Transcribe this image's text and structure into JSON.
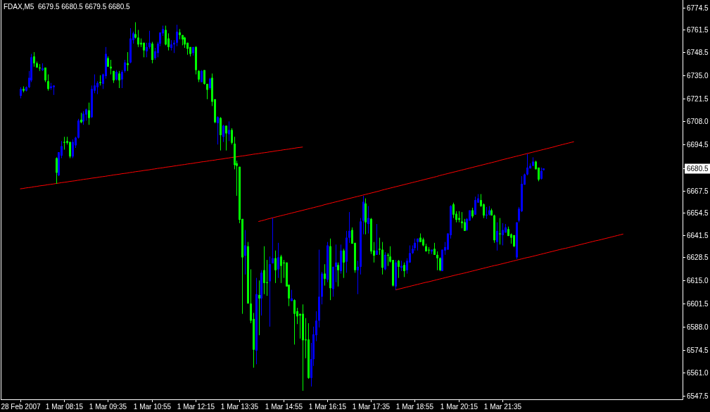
{
  "chart_data": {
    "type": "candlestick",
    "title": "FDAX,M5  6679.5 6680.5 6679.5 6680.5",
    "categories": [
      "28 Feb 2007",
      null,
      null,
      null,
      null,
      null,
      null,
      null,
      null,
      null,
      null,
      null,
      null,
      null,
      null,
      null,
      "1 Mar 08:15",
      null,
      null,
      null,
      null,
      null,
      null,
      null,
      null,
      null,
      null,
      null,
      null,
      null,
      null,
      null,
      "1 Mar 09:35",
      null,
      null,
      null,
      null,
      null,
      null,
      null,
      null,
      null,
      null,
      null,
      null,
      null,
      null,
      null,
      "1 Mar 10:55",
      null,
      null,
      null,
      null,
      null,
      null,
      null,
      null,
      null,
      null,
      null,
      null,
      null,
      null,
      null,
      "1 Mar 12:15",
      null,
      null,
      null,
      null,
      null,
      null,
      null,
      null,
      null,
      null,
      null,
      null,
      null,
      null,
      null,
      "1 Mar 13:35",
      null,
      null,
      null,
      null,
      null,
      null,
      null,
      null,
      null,
      null,
      null,
      null,
      null,
      null,
      null,
      "1 Mar 14:55",
      null,
      null,
      null,
      null,
      null,
      null,
      null,
      null,
      null,
      null,
      null,
      null,
      null,
      null,
      null,
      "1 Mar 16:15",
      null,
      null,
      null,
      null,
      null,
      null,
      null,
      null,
      null,
      null,
      null,
      null,
      null,
      null,
      null,
      "1 Mar 17:35",
      null,
      null,
      null,
      null,
      null,
      null,
      null,
      null,
      null,
      null,
      null,
      null,
      null,
      null,
      null,
      "1 Mar 18:55",
      null,
      null,
      null,
      null,
      null,
      null,
      null,
      null,
      null,
      null,
      null,
      null,
      null,
      null,
      null,
      "1 Mar 20:15",
      null,
      null,
      null,
      null,
      null,
      null,
      null,
      null,
      null,
      null,
      null,
      null,
      null,
      null,
      null,
      "1 Mar 21:35",
      null,
      null,
      null,
      null,
      null,
      null,
      null,
      null,
      null,
      null,
      null,
      null,
      null,
      null,
      null,
      null,
      null,
      null,
      null,
      null,
      null,
      null,
      null,
      null,
      null,
      null,
      null,
      null,
      null,
      null,
      null,
      null,
      null,
      null,
      null,
      null,
      null,
      null,
      null,
      null,
      null,
      null,
      null,
      null,
      null,
      null,
      null,
      null,
      null,
      null,
      null,
      null,
      null,
      null,
      null,
      null,
      null,
      null,
      null,
      null,
      null,
      null,
      null,
      null,
      null
    ],
    "ohlc": [
      [
        6723,
        6728,
        6721.5,
        6727
      ],
      [
        6727,
        6728.5,
        6725,
        6726
      ],
      [
        6726,
        6728.5,
        6725.5,
        6728
      ],
      [
        6728,
        6737.5,
        6727.5,
        6733.5
      ],
      [
        6732,
        6747.5,
        6731,
        6745.5
      ],
      [
        6746,
        6748.5,
        6740,
        6742
      ],
      [
        6742,
        6743,
        6739.5,
        6739.5
      ],
      [
        6739.5,
        6741.5,
        6737.5,
        6739
      ],
      [
        6738,
        6742,
        6737.5,
        6739
      ],
      [
        6739.5,
        6739.5,
        6731,
        6732
      ],
      [
        6731.5,
        6735.5,
        6726,
        6727
      ],
      [
        6727.5,
        6730.5,
        6726.5,
        6728.5
      ],
      [
        6728,
        6729,
        6723.5,
        6729
      ],
      [
        6686.5,
        6687,
        6671.5,
        6678
      ],
      [
        6676.5,
        6690,
        6676,
        6690
      ],
      [
        6688,
        6696.5,
        6686.5,
        6693.5
      ],
      [
        6696,
        6699,
        6691.5,
        6695.5
      ],
      [
        6696.5,
        6699,
        6694.5,
        6695.5
      ],
      [
        6696,
        6696,
        6686.5,
        6687.5
      ],
      [
        6687.5,
        6697.5,
        6686.5,
        6696
      ],
      [
        6694,
        6699,
        6692.5,
        6698.5
      ],
      [
        6698.5,
        6709.5,
        6698,
        6708.5
      ],
      [
        6709,
        6713,
        6707,
        6707.5
      ],
      [
        6708,
        6714,
        6706,
        6712.5
      ],
      [
        6712,
        6715.5,
        6708.5,
        6715
      ],
      [
        6714.5,
        6719,
        6706,
        6710
      ],
      [
        6710.5,
        6729,
        6710,
        6727
      ],
      [
        6726,
        6735.5,
        6724.5,
        6729
      ],
      [
        6728,
        6731.5,
        6724,
        6730.5
      ],
      [
        6731,
        6735,
        6729,
        6730.5
      ],
      [
        6730,
        6736,
        6727,
        6735.5
      ],
      [
        6734.5,
        6751.5,
        6733,
        6747.5
      ],
      [
        6745,
        6746,
        6740,
        6740
      ],
      [
        6740,
        6744,
        6735.5,
        6739
      ],
      [
        6737.5,
        6737.5,
        6730.5,
        6732
      ],
      [
        6732.5,
        6738,
        6732,
        6737
      ],
      [
        6736,
        6737.5,
        6727.5,
        6732
      ],
      [
        6732.5,
        6738,
        6727.5,
        6737
      ],
      [
        6737.5,
        6744,
        6736.5,
        6742.5
      ],
      [
        6742,
        6748.5,
        6737.5,
        6741
      ],
      [
        6742.5,
        6762.5,
        6742,
        6756.5
      ],
      [
        6755.5,
        6760.5,
        6753.5,
        6759.5
      ],
      [
        6759,
        6766,
        6756.5,
        6757
      ],
      [
        6757,
        6761.5,
        6751.5,
        6753
      ],
      [
        6754,
        6756.5,
        6751.5,
        6753
      ],
      [
        6754,
        6754,
        6745.5,
        6749.5
      ],
      [
        6749,
        6754,
        6745.5,
        6751.5
      ],
      [
        6751.5,
        6761,
        6750.5,
        6754
      ],
      [
        6753.5,
        6754.5,
        6742,
        6744
      ],
      [
        6745,
        6751,
        6744,
        6749
      ],
      [
        6748,
        6754.5,
        6745.5,
        6753.5
      ],
      [
        6753.5,
        6760,
        6752,
        6760
      ],
      [
        6759.5,
        6764,
        6758,
        6762
      ],
      [
        6761.5,
        6764,
        6752.5,
        6753
      ],
      [
        6756.5,
        6759.5,
        6749.5,
        6751.5
      ],
      [
        6751,
        6755.5,
        6749.5,
        6753
      ],
      [
        6753,
        6755.5,
        6748,
        6754
      ],
      [
        6754,
        6764.5,
        6752,
        6760.5
      ],
      [
        6760,
        6762,
        6756,
        6758.5
      ],
      [
        6758.5,
        6758.5,
        6752.5,
        6756
      ],
      [
        6757,
        6757.5,
        6751,
        6753
      ],
      [
        6754,
        6754,
        6747,
        6750.5
      ],
      [
        6751.5,
        6751.5,
        6746,
        6747.5
      ],
      [
        6748,
        6751.5,
        6746.5,
        6751.5
      ],
      [
        6751.5,
        6752,
        6735.5,
        6738
      ],
      [
        6737.5,
        6738,
        6731,
        6732.5
      ],
      [
        6731,
        6738,
        6731,
        6737.5
      ],
      [
        6738,
        6738,
        6729.5,
        6730
      ],
      [
        6730,
        6730,
        6721,
        6726.5
      ],
      [
        6727.5,
        6733.5,
        6726.5,
        6733
      ],
      [
        6733.5,
        6736,
        6717,
        6719.5
      ],
      [
        6721,
        6721,
        6707,
        6707.5
      ],
      [
        6707,
        6711,
        6694.5,
        6710.5
      ],
      [
        6710,
        6710.5,
        6691,
        6700
      ],
      [
        6699,
        6706,
        6696,
        6705.5
      ],
      [
        6705.5,
        6705.5,
        6691,
        6701
      ],
      [
        6700.5,
        6708,
        6696.5,
        6703
      ],
      [
        6703,
        6704,
        6694.5,
        6695.5
      ],
      [
        6695,
        6699,
        6680,
        6682.5
      ],
      [
        6683.5,
        6685,
        6664.5,
        6682
      ],
      [
        6681.5,
        6681.5,
        6648.5,
        6650.5
      ],
      [
        6651,
        6651,
        6595.5,
        6628.5
      ],
      [
        6629.5,
        6644.5,
        6618.5,
        6635.5
      ],
      [
        6635,
        6637.5,
        6601.5,
        6601.5
      ],
      [
        6601.5,
        6621.5,
        6590,
        6591.5
      ],
      [
        6592.5,
        6596,
        6564,
        6574.5
      ],
      [
        6574,
        6616.5,
        6566,
        6607
      ],
      [
        6606.5,
        6615,
        6583,
        6604.5
      ],
      [
        6604.5,
        6621,
        6594.5,
        6619.5
      ],
      [
        6621,
        6635,
        6607,
        6613.5
      ],
      [
        6614,
        6627,
        6606,
        6613.5
      ],
      [
        6614.5,
        6629,
        6588,
        6624.5
      ],
      [
        6625,
        6651.5,
        6625,
        6628
      ],
      [
        6628,
        6632.5,
        6613.5,
        6621
      ],
      [
        6621.5,
        6637,
        6616.5,
        6628.5
      ],
      [
        6629,
        6630,
        6613.5,
        6623.5
      ],
      [
        6625.5,
        6627,
        6616.5,
        6625
      ],
      [
        6625.5,
        6625.5,
        6611.5,
        6611.5
      ],
      [
        6612.5,
        6612.5,
        6600,
        6604.5
      ],
      [
        6603,
        6609.5,
        6603,
        6604.5
      ],
      [
        6603.5,
        6604,
        6577.5,
        6595.5
      ],
      [
        6597,
        6599,
        6589.5,
        6594
      ],
      [
        6595.5,
        6595.5,
        6581,
        6594.5
      ],
      [
        6595.5,
        6601,
        6550.5,
        6580
      ],
      [
        6580.5,
        6593,
        6569.5,
        6580
      ],
      [
        6580.5,
        6590,
        6557.5,
        6558
      ],
      [
        6558,
        6578.5,
        6553,
        6569
      ],
      [
        6569,
        6588,
        6565,
        6583.5
      ],
      [
        6583,
        6597,
        6579.5,
        6591.5
      ],
      [
        6591.5,
        6633,
        6587.5,
        6605.5
      ],
      [
        6605.5,
        6620,
        6601,
        6619
      ],
      [
        6619,
        6624.5,
        6612,
        6616
      ],
      [
        6615.5,
        6637.5,
        6614,
        6635.5
      ],
      [
        6635,
        6639.5,
        6603.5,
        6610.5
      ],
      [
        6610,
        6623,
        6605.5,
        6623
      ],
      [
        6623,
        6636,
        6614,
        6625.5
      ],
      [
        6624,
        6625.5,
        6611.5,
        6621
      ],
      [
        6620.5,
        6636,
        6619,
        6632.5
      ],
      [
        6632.5,
        6633.5,
        6616.5,
        6625.5
      ],
      [
        6626,
        6644,
        6619.5,
        6640
      ],
      [
        6640,
        6655,
        6637,
        6644
      ],
      [
        6644.5,
        6646,
        6636.5,
        6636.5
      ],
      [
        6637,
        6637,
        6619.5,
        6621
      ],
      [
        6621,
        6626.5,
        6607,
        6623
      ],
      [
        6623,
        6651.5,
        6618.5,
        6649.5
      ],
      [
        6650,
        6664.5,
        6642,
        6661
      ],
      [
        6660,
        6663,
        6642,
        6649
      ],
      [
        6648,
        6658.5,
        6642.5,
        6651.5
      ],
      [
        6651,
        6651.5,
        6630.5,
        6632
      ],
      [
        6632.5,
        6637.5,
        6625.5,
        6629.5
      ],
      [
        6630,
        6648,
        6630,
        6632.5
      ],
      [
        6633.5,
        6640,
        6630,
        6633
      ],
      [
        6633,
        6637.5,
        6618.5,
        6622.5
      ],
      [
        6621.5,
        6631.5,
        6621,
        6630
      ],
      [
        6630,
        6631,
        6623.5,
        6629.5
      ],
      [
        6629,
        6635,
        6625.5,
        6626
      ],
      [
        6627,
        6627,
        6611.5,
        6612
      ],
      [
        6611.5,
        6627,
        6609.5,
        6625.5
      ],
      [
        6626.5,
        6627,
        6616.5,
        6623
      ],
      [
        6622.5,
        6626.5,
        6620.5,
        6623.5
      ],
      [
        6624,
        6625.5,
        6617,
        6620.5
      ],
      [
        6621,
        6628,
        6619,
        6626.5
      ],
      [
        6625.5,
        6635.5,
        6625.5,
        6631
      ],
      [
        6631,
        6635.5,
        6630.5,
        6633.5
      ],
      [
        6634,
        6639.5,
        6632.5,
        6637
      ],
      [
        6637.5,
        6639.5,
        6632.5,
        6639.5
      ],
      [
        6640,
        6642.5,
        6637.5,
        6637.5
      ],
      [
        6639,
        6640,
        6635,
        6635.5
      ],
      [
        6635,
        6636.5,
        6632,
        6632
      ],
      [
        6633,
        6634.5,
        6630.5,
        6632.5
      ],
      [
        6632,
        6633,
        6630.5,
        6633
      ],
      [
        6633.5,
        6637,
        6630,
        6630
      ],
      [
        6630,
        6632,
        6621,
        6628
      ],
      [
        6628,
        6628.5,
        6620.5,
        6621
      ],
      [
        6620.5,
        6633,
        6620.5,
        6633
      ],
      [
        6632.5,
        6637.5,
        6630,
        6634.5
      ],
      [
        6633,
        6642.5,
        6633,
        6642.5
      ],
      [
        6641.5,
        6659,
        6639.5,
        6658.5
      ],
      [
        6659.5,
        6660.5,
        6651.5,
        6653.5
      ],
      [
        6654,
        6655.5,
        6649,
        6650.5
      ],
      [
        6651.5,
        6655.5,
        6649,
        6650.5
      ],
      [
        6649.5,
        6655,
        6645.5,
        6648.5
      ],
      [
        6649,
        6651,
        6644,
        6644
      ],
      [
        6644.5,
        6651.5,
        6644,
        6651
      ],
      [
        6650,
        6656,
        6650,
        6656
      ],
      [
        6656,
        6657.5,
        6651.5,
        6652.5
      ],
      [
        6653.5,
        6664,
        6653.5,
        6662
      ],
      [
        6660.5,
        6665.5,
        6660.5,
        6663
      ],
      [
        6662,
        6665.5,
        6658,
        6658.5
      ],
      [
        6659.5,
        6660,
        6651.5,
        6653
      ],
      [
        6653,
        6658,
        6651,
        6653.5
      ],
      [
        6653.5,
        6658.5,
        6653,
        6656
      ],
      [
        6656,
        6657,
        6653,
        6653
      ],
      [
        6653,
        6653.5,
        6637,
        6638.5
      ],
      [
        6637.5,
        6649,
        6632.5,
        6644
      ],
      [
        6642.5,
        6651.5,
        6636,
        6642
      ],
      [
        6641.5,
        6648.5,
        6635.5,
        6644.5
      ],
      [
        6643,
        6648,
        6643,
        6646
      ],
      [
        6645,
        6646.5,
        6641,
        6641
      ],
      [
        6642,
        6642.5,
        6636.5,
        6640
      ],
      [
        6641.5,
        6641.5,
        6634.5,
        6635
      ],
      [
        6628.5,
        6649,
        6627.5,
        6649
      ],
      [
        6650,
        6658,
        6649,
        6657
      ],
      [
        6655.5,
        6676,
        6655,
        6671.5
      ],
      [
        6671,
        6677.5,
        6671,
        6677
      ],
      [
        6677,
        6689,
        6676.5,
        6681
      ],
      [
        6680.5,
        6683.5,
        6680.5,
        6682
      ],
      [
        6682,
        6687,
        6682,
        6684.5
      ],
      [
        6684.5,
        6685,
        6680,
        6680
      ],
      [
        6681,
        6681,
        6673,
        6674
      ],
      [
        6674.5,
        6681,
        6674,
        6679
      ],
      [
        6679.5,
        6680.5,
        6679.5,
        6680.5
      ],
      null,
      null,
      null,
      null,
      null,
      null,
      null,
      null,
      null,
      null,
      null,
      null,
      null,
      null,
      null,
      null,
      null,
      null,
      null,
      null,
      null,
      null,
      null,
      null,
      null,
      null,
      null,
      null,
      null,
      null,
      null,
      null,
      null,
      null,
      null,
      null,
      null,
      null,
      null,
      null,
      null,
      null,
      null,
      null,
      null,
      null,
      null,
      null,
      null,
      null
    ],
    "colors": [
      "#0000ff",
      "#00ff00",
      "#0000ff",
      "#0000ff",
      "#0000ff",
      "#00ff00",
      "#00ff00",
      "#00ff00",
      "#0000ff",
      "#00ff00",
      "#00ff00",
      "#0000ff",
      "#0000ff",
      "#00ff00",
      "#0000ff",
      "#0000ff",
      "#00ff00",
      "#00ff00",
      "#00ff00",
      "#0000ff",
      "#0000ff",
      "#0000ff",
      "#00ff00",
      "#0000ff",
      "#0000ff",
      "#00ff00",
      "#0000ff",
      "#0000ff",
      "#0000ff",
      "#00ff00",
      "#0000ff",
      "#0000ff",
      "#00ff00",
      "#00ff00",
      "#00ff00",
      "#0000ff",
      "#00ff00",
      "#0000ff",
      "#0000ff",
      "#00ff00",
      "#0000ff",
      "#0000ff",
      "#00ff00",
      "#00ff00",
      "#00ff00",
      "#00ff00",
      "#0000ff",
      "#0000ff",
      "#00ff00",
      "#0000ff",
      "#0000ff",
      "#0000ff",
      "#0000ff",
      "#00ff00",
      "#00ff00",
      "#0000ff",
      "#0000ff",
      "#0000ff",
      "#00ff00",
      "#00ff00",
      "#00ff00",
      "#00ff00",
      "#00ff00",
      "#0000ff",
      "#00ff00",
      "#00ff00",
      "#0000ff",
      "#00ff00",
      "#00ff00",
      "#0000ff",
      "#00ff00",
      "#00ff00",
      "#0000ff",
      "#00ff00",
      "#0000ff",
      "#00ff00",
      "#0000ff",
      "#00ff00",
      "#00ff00",
      "#00ff00",
      "#00ff00",
      "#00ff00",
      "#0000ff",
      "#00ff00",
      "#00ff00",
      "#00ff00",
      "#0000ff",
      "#00ff00",
      "#0000ff",
      "#00ff00",
      "#00ff00",
      "#0000ff",
      "#0000ff",
      "#00ff00",
      "#0000ff",
      "#00ff00",
      "#00ff00",
      "#00ff00",
      "#00ff00",
      "#0000ff",
      "#00ff00",
      "#00ff00",
      "#00ff00",
      "#00ff00",
      "#00ff00",
      "#00ff00",
      "#0000ff",
      "#0000ff",
      "#0000ff",
      "#0000ff",
      "#0000ff",
      "#00ff00",
      "#0000ff",
      "#00ff00",
      "#0000ff",
      "#0000ff",
      "#00ff00",
      "#0000ff",
      "#00ff00",
      "#0000ff",
      "#0000ff",
      "#00ff00",
      "#00ff00",
      "#0000ff",
      "#0000ff",
      "#0000ff",
      "#00ff00",
      "#0000ff",
      "#00ff00",
      "#00ff00",
      "#0000ff",
      "#00ff00",
      "#00ff00",
      "#0000ff",
      "#00ff00",
      "#00ff00",
      "#00ff00",
      "#0000ff",
      "#00ff00",
      "#0000ff",
      "#00ff00",
      "#0000ff",
      "#0000ff",
      "#0000ff",
      "#0000ff",
      "#0000ff",
      "#00ff00",
      "#00ff00",
      "#00ff00",
      "#00ff00",
      "#0000ff",
      "#00ff00",
      "#00ff00",
      "#00ff00",
      "#0000ff",
      "#0000ff",
      "#0000ff",
      "#0000ff",
      "#00ff00",
      "#00ff00",
      "#00ff00",
      "#00ff00",
      "#00ff00",
      "#0000ff",
      "#0000ff",
      "#00ff00",
      "#0000ff",
      "#0000ff",
      "#00ff00",
      "#00ff00",
      "#0000ff",
      "#0000ff",
      "#00ff00",
      "#00ff00",
      "#0000ff",
      "#00ff00",
      "#0000ff",
      "#0000ff",
      "#00ff00",
      "#00ff00",
      "#00ff00",
      "#0000ff",
      "#0000ff",
      "#0000ff",
      "#0000ff",
      "#0000ff",
      "#0000ff",
      "#0000ff",
      "#00ff00",
      "#00ff00",
      "#0000ff",
      "#0000ff",
      null,
      null,
      null,
      null,
      null,
      null,
      null,
      null,
      null,
      null,
      null,
      null,
      null,
      null,
      null,
      null,
      null,
      null,
      null,
      null,
      null,
      null,
      null,
      null,
      null,
      null,
      null,
      null,
      null,
      null,
      null,
      null,
      null,
      null,
      null,
      null,
      null,
      null,
      null,
      null,
      null,
      null,
      null,
      null,
      null,
      null,
      null,
      null,
      null,
      null
    ],
    "series": [
      {
        "type": "line",
        "color": "#ff0000",
        "values": [
          6668.6,
          6668.8,
          6669.1,
          6669.3,
          6669.5,
          6669.8,
          6670.0,
          6670.3,
          6670.5,
          6670.7,
          6671.0,
          6671.2,
          6671.4,
          6671.7,
          6671.9,
          6672.2,
          6672.4,
          6672.6,
          6672.9,
          6673.1,
          6673.3,
          6673.6,
          6673.8,
          6674.1,
          6674.3,
          6674.5,
          6674.8,
          6675.0,
          6675.2,
          6675.5,
          6675.7,
          6675.9,
          6676.2,
          6676.4,
          6676.7,
          6676.9,
          6677.1,
          6677.4,
          6677.6,
          6677.8,
          6678.1,
          6678.3,
          6678.6,
          6678.8,
          6679.0,
          6679.3,
          6679.5,
          6679.7,
          6680.0,
          6680.2,
          6680.5,
          6680.7,
          6680.9,
          6681.2,
          6681.4,
          6681.6,
          6681.9,
          6682.1,
          6682.4,
          6682.6,
          6682.8,
          6683.1,
          6683.3,
          6683.5,
          6683.8,
          6684.0,
          6684.3,
          6684.5,
          6684.7,
          6685.0,
          6685.2,
          6685.4,
          6685.7,
          6685.9,
          6686.1,
          6686.4,
          6686.6,
          6686.9,
          6687.1,
          6687.3,
          6687.6,
          6687.8,
          6688.0,
          6688.3,
          6688.5,
          6688.8,
          6689.0,
          6689.2,
          6689.5,
          6689.7,
          6689.9,
          6690.2,
          6690.4,
          6690.7,
          6690.9,
          6691.1,
          6691.4,
          6691.6,
          6691.8,
          6692.1,
          6692.3,
          6692.6,
          6692.8,
          6693.0,
          null,
          null,
          null,
          null,
          null,
          null,
          null,
          null,
          null,
          null,
          null,
          null,
          null,
          null,
          null,
          null,
          null,
          null,
          null,
          null,
          null,
          null,
          null,
          null,
          null,
          null,
          null,
          null,
          null,
          null,
          null,
          null,
          null,
          null,
          null,
          null,
          null,
          null,
          null,
          null,
          null,
          null,
          null,
          null,
          null,
          null,
          null,
          null,
          null,
          null,
          null,
          null,
          null,
          null,
          null,
          null,
          null,
          null,
          null,
          null,
          null,
          null,
          null,
          null,
          null,
          null,
          null,
          null,
          null,
          null,
          null,
          null,
          null,
          null,
          null,
          null,
          null,
          null,
          null,
          null,
          null,
          null,
          null,
          null,
          null,
          null,
          null,
          null,
          null,
          null,
          null,
          null,
          null,
          null,
          null,
          null,
          null,
          null,
          null,
          null,
          null,
          null,
          null,
          null,
          null,
          null,
          null,
          null,
          null,
          null,
          null,
          null,
          null,
          null,
          null,
          null,
          null,
          null,
          null,
          null,
          null,
          null,
          null,
          null,
          null,
          null,
          null,
          null,
          null,
          null,
          null,
          null,
          null,
          null,
          null,
          null,
          null,
          null
        ]
      },
      {
        "type": "line",
        "color": "#ff0000",
        "values": [
          null,
          null,
          null,
          null,
          null,
          null,
          null,
          null,
          null,
          null,
          null,
          null,
          null,
          null,
          null,
          null,
          null,
          null,
          null,
          null,
          null,
          null,
          null,
          null,
          null,
          null,
          null,
          null,
          null,
          null,
          null,
          null,
          null,
          null,
          null,
          null,
          null,
          null,
          null,
          null,
          null,
          null,
          null,
          null,
          null,
          null,
          null,
          null,
          null,
          null,
          null,
          null,
          null,
          null,
          null,
          null,
          null,
          null,
          null,
          null,
          null,
          null,
          null,
          null,
          null,
          null,
          null,
          null,
          null,
          null,
          null,
          null,
          null,
          null,
          null,
          null,
          null,
          null,
          null,
          null,
          null,
          null,
          null,
          null,
          null,
          null,
          null,
          6649.5,
          6649.9,
          6650.3,
          6650.8,
          6651.2,
          6651.6,
          6652.0,
          6652.4,
          6652.8,
          6653.2,
          6653.6,
          6654.0,
          6654.4,
          6654.8,
          6655.2,
          6655.6,
          6656.0,
          6656.4,
          6656.8,
          6657.2,
          6657.6,
          6658.0,
          6658.4,
          6658.8,
          6659.3,
          6659.7,
          6660.1,
          6660.5,
          6660.9,
          6661.3,
          6661.7,
          6662.1,
          6662.5,
          6662.9,
          6663.3,
          6663.7,
          6664.1,
          6664.5,
          6664.9,
          6665.3,
          6665.7,
          6666.1,
          6666.5,
          6666.9,
          6667.3,
          6667.8,
          6668.2,
          6668.6,
          6669.0,
          6669.4,
          6669.8,
          6670.2,
          6670.6,
          6671.0,
          6671.4,
          6671.8,
          6672.2,
          6672.6,
          6673.0,
          6673.4,
          6673.8,
          6674.2,
          6674.6,
          6675.0,
          6675.4,
          6675.8,
          6676.3,
          6676.7,
          6677.1,
          6677.5,
          6677.9,
          6678.3,
          6678.7,
          6679.1,
          6679.5,
          6679.9,
          6680.3,
          6680.7,
          6681.1,
          6681.5,
          6681.9,
          6682.3,
          6682.7,
          6683.1,
          6683.5,
          6683.9,
          6684.3,
          6684.7,
          6685.2,
          6685.6,
          6686.0,
          6686.4,
          6686.8,
          6687.2,
          6687.6,
          6688.0,
          6688.4,
          6688.8,
          6689.2,
          6689.6,
          6690.0,
          6690.4,
          6690.8,
          6691.2,
          6691.6,
          6692.0,
          6692.4,
          6692.8,
          6693.2,
          6693.7,
          6694.1,
          6694.5,
          6694.9,
          6695.3,
          6695.7,
          6696.1,
          null,
          null,
          null,
          null,
          null,
          null,
          null,
          null,
          null,
          null,
          null,
          null,
          null,
          null,
          null,
          null,
          null,
          null,
          null,
          null,
          null,
          null,
          null,
          null,
          null,
          null,
          null,
          null,
          null,
          null,
          null,
          null,
          null,
          null,
          null,
          null,
          null,
          null,
          null
        ]
      },
      {
        "type": "line",
        "color": "#ff0000",
        "values": [
          null,
          null,
          null,
          null,
          null,
          null,
          null,
          null,
          null,
          null,
          null,
          null,
          null,
          null,
          null,
          null,
          null,
          null,
          null,
          null,
          null,
          null,
          null,
          null,
          null,
          null,
          null,
          null,
          null,
          null,
          null,
          null,
          null,
          null,
          null,
          null,
          null,
          null,
          null,
          null,
          null,
          null,
          null,
          null,
          null,
          null,
          null,
          null,
          null,
          null,
          null,
          null,
          null,
          null,
          null,
          null,
          null,
          null,
          null,
          null,
          null,
          null,
          null,
          null,
          null,
          null,
          null,
          null,
          null,
          null,
          null,
          null,
          null,
          null,
          null,
          null,
          null,
          null,
          null,
          null,
          null,
          null,
          null,
          null,
          null,
          null,
          null,
          null,
          null,
          null,
          null,
          null,
          null,
          null,
          null,
          null,
          null,
          null,
          null,
          null,
          null,
          null,
          null,
          null,
          null,
          null,
          null,
          null,
          null,
          null,
          null,
          null,
          null,
          null,
          null,
          null,
          null,
          null,
          null,
          null,
          null,
          null,
          null,
          null,
          null,
          null,
          null,
          null,
          null,
          null,
          null,
          null,
          null,
          null,
          null,
          null,
          null,
          6609.5,
          6609.9,
          6610.3,
          6610.7,
          6611.1,
          6611.5,
          6611.9,
          6612.3,
          6612.7,
          6613.1,
          6613.5,
          6613.9,
          6614.2,
          6614.6,
          6615.0,
          6615.4,
          6615.8,
          6616.2,
          6616.6,
          6617.0,
          6617.4,
          6617.8,
          6618.2,
          6618.6,
          6618.9,
          6619.3,
          6619.7,
          6620.1,
          6620.5,
          6620.9,
          6621.3,
          6621.7,
          6622.1,
          6622.5,
          6622.9,
          6623.3,
          6623.7,
          6624.0,
          6624.4,
          6624.8,
          6625.2,
          6625.6,
          6626.0,
          6626.4,
          6626.8,
          6627.2,
          6627.6,
          6628.0,
          6628.4,
          6628.7,
          6629.1,
          6629.5,
          6629.9,
          6630.3,
          6630.7,
          6631.1,
          6631.5,
          6631.9,
          6632.3,
          6632.7,
          6633.1,
          6633.5,
          6633.8,
          6634.2,
          6634.6,
          6635.0,
          6635.4,
          6635.8,
          6636.2,
          6636.6,
          6637.0,
          6637.4,
          6637.8,
          6638.2,
          6638.5,
          6638.9,
          6639.3,
          6639.7,
          6640.1,
          6640.5,
          6640.9,
          6641.3,
          6641.7,
          6642.1,
          null,
          null,
          null,
          null,
          null,
          null,
          null,
          null,
          null,
          null,
          null,
          null,
          null,
          null,
          null,
          null,
          null,
          null,
          null,
          null,
          null
        ]
      }
    ],
    "ylim": [
      6545.5,
      6779
    ],
    "yticks": [
      6774.5,
      6761.5,
      6748.5,
      {
        "value": 6735,
        "label": "6735.0"
      },
      6721.5,
      {
        "value": 6708,
        "label": "6708.0"
      },
      6694.5,
      6680.5,
      6667.5,
      6654.5,
      6641.5,
      6628.5,
      {
        "value": 6615,
        "label": "6615.0"
      },
      6601.5,
      {
        "value": 6588,
        "label": "6588.0"
      },
      6574.5,
      {
        "value": 6561,
        "label": "6561.0"
      },
      6547.5
    ]
  }
}
